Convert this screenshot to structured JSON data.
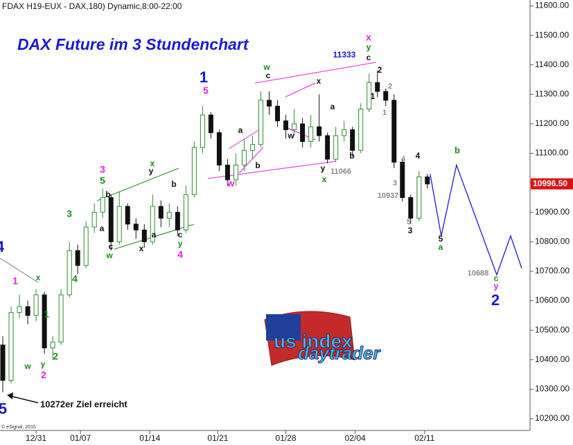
{
  "chart_data": {
    "type": "candlestick",
    "header": "FDAX H19-EUX - DAX,180) Dynamic,8:00-22:00",
    "title": "DAX Future im 3 Stundenchart",
    "credit": "© eSignal, 2016",
    "logo": [
      "us index",
      "daytrader"
    ],
    "up_color": "#2e8b2e",
    "down_color": "#111111",
    "x": [
      1,
      4,
      7,
      10,
      13,
      16,
      19,
      22,
      25,
      28,
      31,
      34,
      37,
      40,
      43,
      46,
      49,
      52,
      55,
      58,
      61,
      64,
      67,
      70,
      73,
      76,
      79,
      82,
      85,
      88,
      91,
      94,
      97,
      100,
      103,
      106,
      109,
      112,
      115,
      118,
      121,
      124,
      127,
      130,
      133,
      136,
      139,
      142,
      145,
      148,
      151,
      154
    ],
    "open": [
      10450,
      10330,
      10560,
      10580,
      10550,
      10620,
      10440,
      10460,
      10620,
      10770,
      10720,
      10850,
      10900,
      10950,
      10800,
      10920,
      10860,
      10840,
      10800,
      10920,
      10880,
      10900,
      10840,
      10960,
      11120,
      11230,
      11170,
      11060,
      11010,
      11060,
      11110,
      11130,
      11280,
      11260,
      11210,
      11180,
      11200,
      11140,
      11190,
      11160,
      11080,
      11160,
      11180,
      11110,
      11250,
      11340,
      11310,
      11280,
      11070,
      10950,
      10880,
      11020
    ],
    "high": [
      10480,
      10580,
      10620,
      10600,
      10640,
      10630,
      10480,
      10640,
      10800,
      10790,
      10870,
      10930,
      10980,
      10960,
      10970,
      10930,
      10880,
      10860,
      10960,
      10940,
      10930,
      10920,
      10990,
      11140,
      11260,
      11240,
      11180,
      11080,
      11100,
      11150,
      11160,
      11310,
      11310,
      11280,
      11230,
      11250,
      11220,
      11230,
      11300,
      11170,
      11190,
      11210,
      11190,
      11270,
      11370,
      11380,
      11320,
      11300,
      11080,
      10960,
      11040,
      11030
    ],
    "low": [
      10290,
      10320,
      10540,
      10520,
      10530,
      10420,
      10400,
      10450,
      10610,
      10690,
      10710,
      10830,
      10880,
      10770,
      10790,
      10840,
      10810,
      10780,
      10790,
      10850,
      10850,
      10820,
      10830,
      10950,
      11100,
      11150,
      11040,
      10990,
      10990,
      11040,
      11080,
      11120,
      11230,
      11190,
      11150,
      11160,
      11120,
      11120,
      11140,
      11066,
      11070,
      11140,
      11090,
      11100,
      11240,
      11290,
      11260,
      11050,
      10937,
      10860,
      10870,
      10980
    ],
    "close": [
      10330,
      10560,
      10580,
      10550,
      10620,
      10440,
      10460,
      10620,
      10770,
      10720,
      10850,
      10900,
      10950,
      10800,
      10920,
      10860,
      10840,
      10800,
      10920,
      10880,
      10900,
      10840,
      10960,
      11120,
      11230,
      11170,
      11060,
      11010,
      11060,
      11110,
      11130,
      11280,
      11260,
      11210,
      11180,
      11200,
      11140,
      11190,
      11160,
      11080,
      11160,
      11180,
      11110,
      11250,
      11340,
      11310,
      11280,
      11070,
      10950,
      10880,
      11020,
      10996
    ],
    "projection": {
      "color": "#1a1ad0",
      "x": [
        155,
        159,
        164.5,
        179,
        184,
        188
      ],
      "values": [
        11030,
        10820,
        11060,
        10688,
        10820,
        10710
      ]
    },
    "current_price": {
      "value": 10996.5,
      "label": "10996.50"
    },
    "xlim": [
      0,
      191
    ],
    "xticks": [
      {
        "value": 13,
        "label": "12/31"
      },
      {
        "value": 29,
        "label": "01/07"
      },
      {
        "value": 54,
        "label": "01/14"
      },
      {
        "value": 78.5,
        "label": "01/21"
      },
      {
        "value": 103,
        "label": "01/28"
      },
      {
        "value": 128,
        "label": "02/04"
      },
      {
        "value": 153,
        "label": "02/11"
      }
    ],
    "ylim": [
      10160,
      11620
    ],
    "yticks": [
      {
        "value": 10200,
        "label": "10200.00"
      },
      {
        "value": 10300,
        "label": "10300.00"
      },
      {
        "value": 10400,
        "label": "10400.00"
      },
      {
        "value": 10500,
        "label": "10500.00"
      },
      {
        "value": 10600,
        "label": "10600.00"
      },
      {
        "value": 10700,
        "label": "10700.00"
      },
      {
        "value": 10800,
        "label": "10800.00"
      },
      {
        "value": 10900,
        "label": "10900.00"
      },
      {
        "value": 11000,
        "label": "11000.00"
      },
      {
        "value": 11100,
        "label": "11100.00"
      },
      {
        "value": 11200,
        "label": "11200.00"
      },
      {
        "value": 11300,
        "label": "11300.00"
      },
      {
        "value": 11400,
        "label": "11400.00"
      },
      {
        "value": 11500,
        "label": "11500.00"
      },
      {
        "value": 11600,
        "label": "11600.00"
      }
    ],
    "annotations": [
      {
        "text": "4",
        "color": "#1a1ad0"
      },
      {
        "text": "1",
        "color": "#e020e0"
      },
      {
        "text": "x",
        "color": "#1a8a1a"
      },
      {
        "text": "1",
        "color": "#1a8a1a"
      },
      {
        "text": "w",
        "color": "#1a8a1a"
      },
      {
        "text": "y",
        "color": "#1a8a1a"
      },
      {
        "text": "2",
        "color": "#e020e0"
      },
      {
        "text": "2",
        "color": "#1a8a1a"
      },
      {
        "text": "5",
        "color": "#1a1ad0"
      },
      {
        "text": "3",
        "color": "#1a8a1a"
      },
      {
        "text": "4",
        "color": "#1a8a1a"
      },
      {
        "text": "3",
        "color": "#e020e0"
      },
      {
        "text": "5",
        "color": "#1a8a1a"
      },
      {
        "text": "b",
        "color": "#111111"
      },
      {
        "text": "a",
        "color": "#111111"
      },
      {
        "text": "c",
        "color": "#111111"
      },
      {
        "text": "w",
        "color": "#1a8a1a"
      },
      {
        "text": "y",
        "color": "#111111"
      },
      {
        "text": "x",
        "color": "#1a8a1a"
      },
      {
        "text": "b",
        "color": "#111111"
      },
      {
        "text": "a",
        "color": "#111111"
      },
      {
        "text": "x",
        "color": "#111111"
      },
      {
        "text": "c",
        "color": "#111111"
      },
      {
        "text": "y",
        "color": "#1a8a1a"
      },
      {
        "text": "4",
        "color": "#e020e0"
      },
      {
        "text": "1",
        "color": "#1a1ad0"
      },
      {
        "text": "5",
        "color": "#e020e0"
      },
      {
        "text": "a",
        "color": "#111111"
      },
      {
        "text": "b",
        "color": "#111111"
      },
      {
        "text": "w",
        "color": "#e020e0"
      },
      {
        "text": "w",
        "color": "#1a8a1a"
      },
      {
        "text": "c",
        "color": "#111111"
      },
      {
        "text": "x",
        "color": "#111111"
      },
      {
        "text": "w",
        "color": "#111111"
      },
      {
        "text": "a",
        "color": "#111111"
      },
      {
        "text": "b",
        "color": "#111111"
      },
      {
        "text": "y",
        "color": "#111111"
      },
      {
        "text": "x",
        "color": "#1a8a1a"
      },
      {
        "text": "11066",
        "color": "#888888"
      },
      {
        "text": "11333",
        "color": "#1a1ad0"
      },
      {
        "text": "x",
        "color": "#e020e0"
      },
      {
        "text": "y",
        "color": "#1a8a1a"
      },
      {
        "text": "c",
        "color": "#111111"
      },
      {
        "text": "2",
        "color": "#111111"
      },
      {
        "text": "1",
        "color": "#111111"
      },
      {
        "text": "2",
        "color": "#888888"
      },
      {
        "text": "1",
        "color": "#888888"
      },
      {
        "text": "4",
        "color": "#888888"
      },
      {
        "text": "4",
        "color": "#111111"
      },
      {
        "text": "3",
        "color": "#888888"
      },
      {
        "text": "10937",
        "color": "#888888"
      },
      {
        "text": "5",
        "color": "#888888"
      },
      {
        "text": "3",
        "color": "#111111"
      },
      {
        "text": "5",
        "color": "#111111"
      },
      {
        "text": "a",
        "color": "#1a8a1a"
      },
      {
        "text": "b",
        "color": "#1a8a1a"
      },
      {
        "text": "10688",
        "color": "#888888"
      },
      {
        "text": "c",
        "color": "#1a8a1a"
      },
      {
        "text": "y",
        "color": "#e020e0"
      },
      {
        "text": "2",
        "color": "#1a1ad0"
      },
      {
        "text": "10272er Ziel erreicht",
        "color": "#111111"
      }
    ]
  }
}
